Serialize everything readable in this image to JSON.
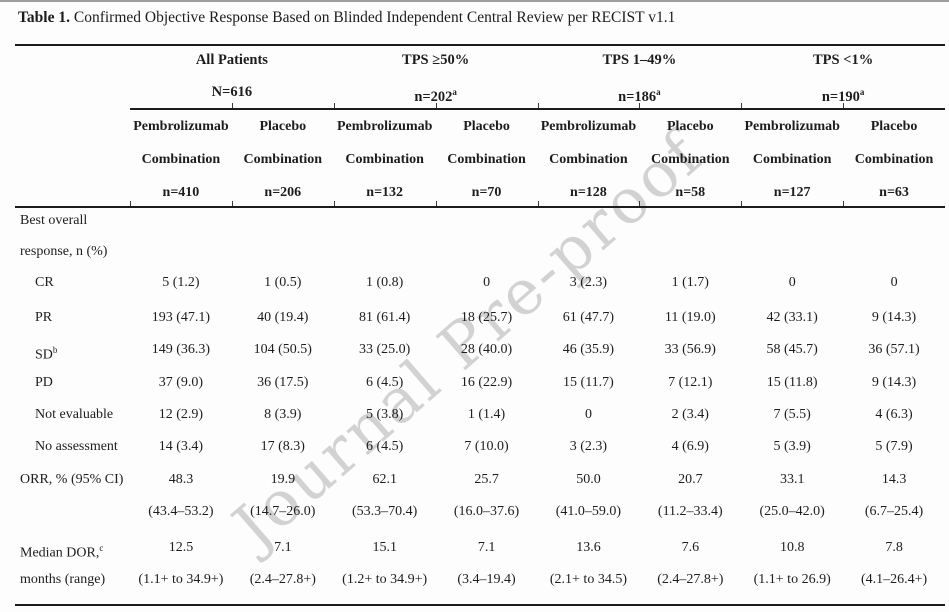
{
  "title": {
    "bold": "Table 1.",
    "rest": " Confirmed Objective Response Based on Blinded Independent Central Review per RECIST v1.1"
  },
  "watermark": "Journal Pre-proof",
  "table": {
    "groups": [
      {
        "line1": "All Patients",
        "line2": "N=616",
        "sup": ""
      },
      {
        "line1": "TPS ≥50%",
        "line2": "n=202",
        "sup": "a"
      },
      {
        "line1": "TPS 1–49%",
        "line2": "n=186",
        "sup": "a"
      },
      {
        "line1": "TPS <1%",
        "line2": "n=190",
        "sup": "a"
      }
    ],
    "columns": [
      {
        "drug": "Pembrolizumab",
        "arm": "Combination",
        "n": "n=410"
      },
      {
        "drug": "Placebo",
        "arm": "Combination",
        "n": "n=206"
      },
      {
        "drug": "Pembrolizumab",
        "arm": "Combination",
        "n": "n=132"
      },
      {
        "drug": "Placebo",
        "arm": "Combination",
        "n": "n=70"
      },
      {
        "drug": "Pembrolizumab",
        "arm": "Combination",
        "n": "n=128"
      },
      {
        "drug": "Placebo",
        "arm": "Combination",
        "n": "n=58"
      },
      {
        "drug": "Pembrolizumab",
        "arm": "Combination",
        "n": "n=127"
      },
      {
        "drug": "Placebo",
        "arm": "Combination",
        "n": "n=63"
      }
    ],
    "lines": [
      {
        "label": "Best overall",
        "sup": "",
        "indent": false,
        "cells": [
          "",
          "",
          "",
          "",
          "",
          "",
          "",
          ""
        ]
      },
      {
        "label": "response, n (%)",
        "sup": "",
        "indent": false,
        "cells": [
          "",
          "",
          "",
          "",
          "",
          "",
          "",
          ""
        ]
      },
      {
        "label": "CR",
        "sup": "",
        "indent": true,
        "cells": [
          "5 (1.2)",
          "1 (0.5)",
          "1 (0.8)",
          "0",
          "3 (2.3)",
          "1 (1.7)",
          "0",
          "0"
        ]
      },
      {
        "label": "PR",
        "sup": "",
        "indent": true,
        "cells": [
          "193 (47.1)",
          "40 (19.4)",
          "81 (61.4)",
          "18 (25.7)",
          "61 (47.7)",
          "11 (19.0)",
          "42 (33.1)",
          "9 (14.3)"
        ]
      },
      {
        "label": "SD",
        "sup": "b",
        "indent": true,
        "cells": [
          "149 (36.3)",
          "104 (50.5)",
          "33 (25.0)",
          "28 (40.0)",
          "46 (35.9)",
          "33 (56.9)",
          "58 (45.7)",
          "36 (57.1)"
        ]
      },
      {
        "label": "PD",
        "sup": "",
        "indent": true,
        "cells": [
          "37 (9.0)",
          "36 (17.5)",
          "6 (4.5)",
          "16 (22.9)",
          "15 (11.7)",
          "7 (12.1)",
          "15 (11.8)",
          "9 (14.3)"
        ]
      },
      {
        "label": "Not evaluable",
        "sup": "",
        "indent": true,
        "cells": [
          "12 (2.9)",
          "8 (3.9)",
          "5 (3.8)",
          "1 (1.4)",
          "0",
          "2 (3.4)",
          "7 (5.5)",
          "4 (6.3)"
        ]
      },
      {
        "label": "No assessment",
        "sup": "",
        "indent": true,
        "cells": [
          "14 (3.4)",
          "17 (8.3)",
          "6 (4.5)",
          "7 (10.0)",
          "3 (2.3)",
          "4 (6.9)",
          "5 (3.9)",
          "5 (7.9)"
        ]
      },
      {
        "label": "ORR, % (95% CI)",
        "sup": "",
        "indent": false,
        "cells": [
          "48.3",
          "19.9",
          "62.1",
          "25.7",
          "50.0",
          "20.7",
          "33.1",
          "14.3"
        ]
      },
      {
        "label": "",
        "sup": "",
        "indent": false,
        "cells": [
          "(43.4–53.2)",
          "(14.7–26.0)",
          "(53.3–70.4)",
          "(16.0–37.6)",
          "(41.0–59.0)",
          "(11.2–33.4)",
          "(25.0–42.0)",
          "(6.7–25.4)"
        ]
      },
      {
        "label": "Median DOR,",
        "sup": "c",
        "indent": false,
        "cells": [
          "12.5",
          "7.1",
          "15.1",
          "7.1",
          "13.6",
          "7.6",
          "10.8",
          "7.8"
        ]
      },
      {
        "label": "months (range)",
        "sup": "",
        "indent": false,
        "cells": [
          "(1.1+ to 34.9+)",
          "(2.4–27.8+)",
          "(1.2+ to 34.9+)",
          "(3.4–19.4)",
          "(2.1+ to 34.5)",
          "(2.4–27.8+)",
          "(1.1+ to 26.9)",
          "(4.1–26.4+)"
        ]
      }
    ]
  }
}
